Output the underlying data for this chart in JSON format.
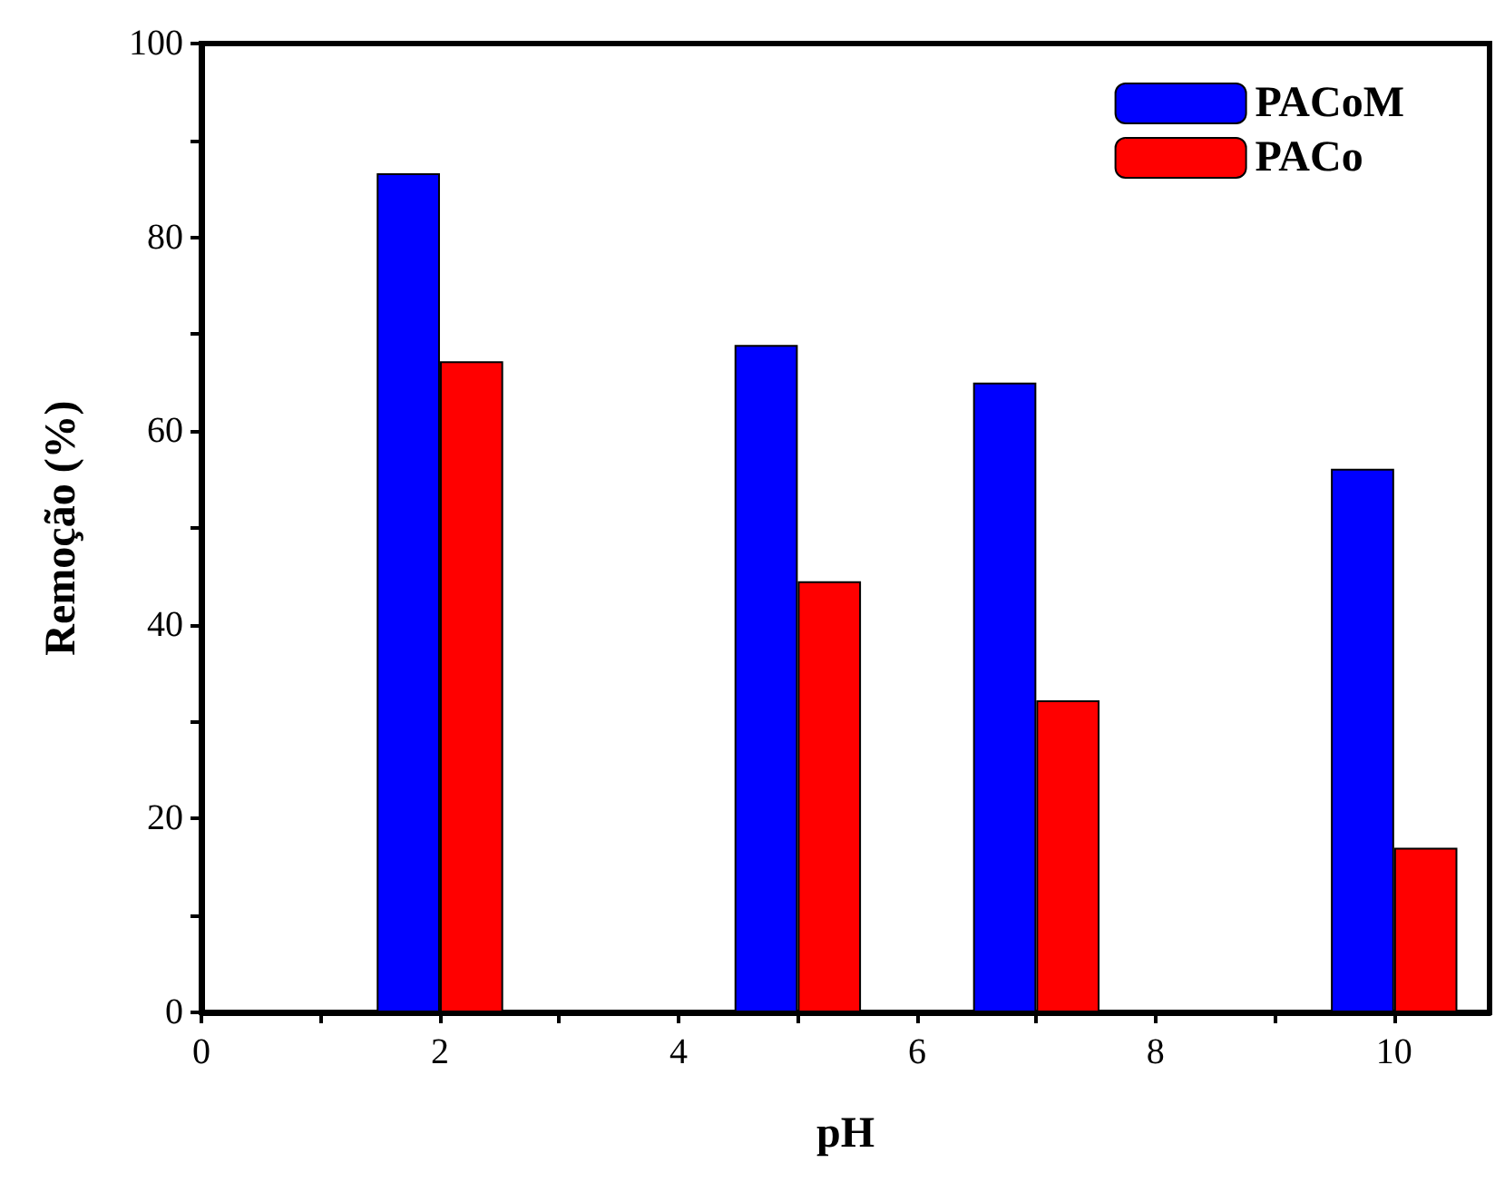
{
  "chart_data": {
    "type": "bar",
    "xlabel": "pH",
    "ylabel": "Remoção (%)",
    "x": [
      2,
      5,
      7,
      10
    ],
    "series": [
      {
        "name": "PACoM",
        "color": "#0000ff",
        "values": [
          86.6,
          68.9,
          65,
          56.1
        ]
      },
      {
        "name": "PACo",
        "color": "#ff0000",
        "values": [
          67.2,
          44.5,
          32.2,
          17
        ]
      }
    ],
    "xlim": [
      0,
      10.8
    ],
    "xticks": [
      0,
      {
        "value": 1,
        "label": null
      },
      2,
      {
        "value": 3,
        "label": null
      },
      4,
      {
        "value": 5,
        "label": null
      },
      6,
      {
        "value": 7,
        "label": null
      },
      8,
      {
        "value": 9,
        "label": null
      },
      10
    ],
    "ylim": [
      0,
      100
    ],
    "yticks": [
      0,
      {
        "value": 10,
        "label": null
      },
      20,
      {
        "value": 30,
        "label": null
      },
      40,
      {
        "value": 50,
        "label": null
      },
      60,
      {
        "value": 70,
        "label": null
      },
      80,
      {
        "value": 90,
        "label": null
      },
      100
    ],
    "grid": false,
    "legend": "top right"
  }
}
